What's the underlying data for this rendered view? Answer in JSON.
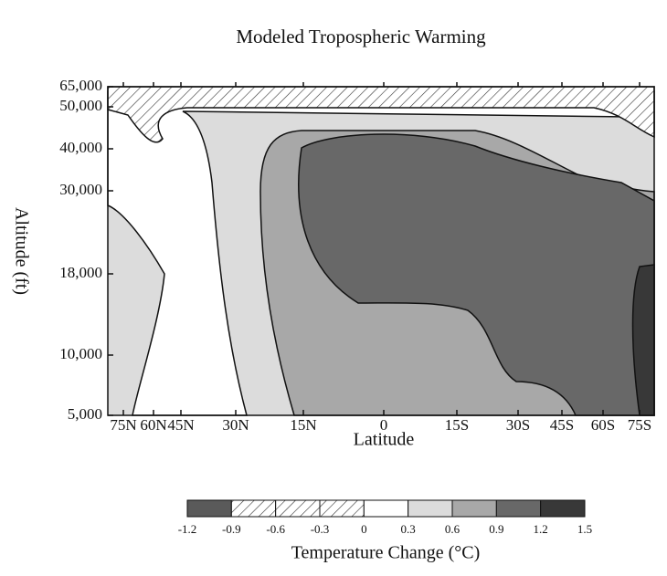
{
  "chart_data": {
    "type": "contour",
    "title": "Modeled Tropospheric Warming",
    "xlabel": "Latitude",
    "ylabel": "Altitude (ft)",
    "xticks": [
      "75N",
      "60N",
      "45N",
      "30N",
      "15N",
      "0",
      "15S",
      "30S",
      "45S",
      "60S",
      "75S"
    ],
    "yticks": [
      {
        "value": 5000,
        "label": "5,000"
      },
      {
        "value": 10000,
        "label": "10,000"
      },
      {
        "value": 18000,
        "label": "18,000"
      },
      {
        "value": 30000,
        "label": "30,000"
      },
      {
        "value": 40000,
        "label": "40,000"
      },
      {
        "value": 50000,
        "label": "50,000"
      },
      {
        "value": 65000,
        "label": "65,000"
      }
    ],
    "colorbar": {
      "label": "Temperature Change (°C)",
      "levels": [
        -1.2,
        -0.9,
        -0.6,
        -0.3,
        0,
        0.3,
        0.6,
        0.9,
        1.2,
        1.5
      ],
      "colors": [
        "#5a5a5a",
        "hatch",
        "hatch",
        "hatch",
        "#ffffff",
        "#dcdcdc",
        "#a8a8a8",
        "#686868",
        "#383838"
      ]
    }
  }
}
